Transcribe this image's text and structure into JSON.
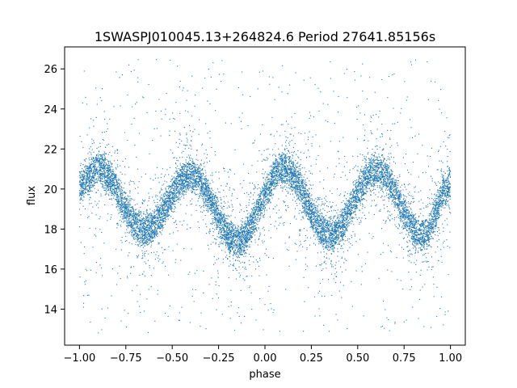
{
  "chart_data": {
    "type": "scatter",
    "title": "1SWASPJ010045.13+264824.6 Period 27641.85156s",
    "xlabel": "phase",
    "ylabel": "flux",
    "xlim": [
      -1.08,
      1.08
    ],
    "ylim": [
      12.2,
      27.1
    ],
    "xticks": [
      -1.0,
      -0.75,
      -0.5,
      -0.25,
      0.0,
      0.25,
      0.5,
      0.75,
      1.0
    ],
    "xtick_labels": [
      "−1.00",
      "−0.75",
      "−0.50",
      "−0.25",
      "0.00",
      "0.25",
      "0.50",
      "0.75",
      "1.00"
    ],
    "yticks": [
      14,
      16,
      18,
      20,
      22,
      24,
      26
    ],
    "ytick_labels": [
      "14",
      "16",
      "18",
      "20",
      "22",
      "24",
      "26"
    ],
    "grid": false,
    "marker_color": "#1f77b4",
    "phase_range": [
      -1.0,
      1.0
    ],
    "series": [
      {
        "mean_curve": {
          "x": [
            -1.0,
            -0.9,
            -0.65,
            -0.4,
            -0.15,
            0.1,
            0.35,
            0.6,
            0.85,
            1.0
          ],
          "y": [
            20.2,
            21.0,
            17.9,
            20.7,
            17.4,
            21.0,
            17.7,
            20.9,
            17.7,
            20.2
          ]
        },
        "band_width": 1.4,
        "outlier_range": [
          12.8,
          26.5
        ]
      }
    ]
  }
}
